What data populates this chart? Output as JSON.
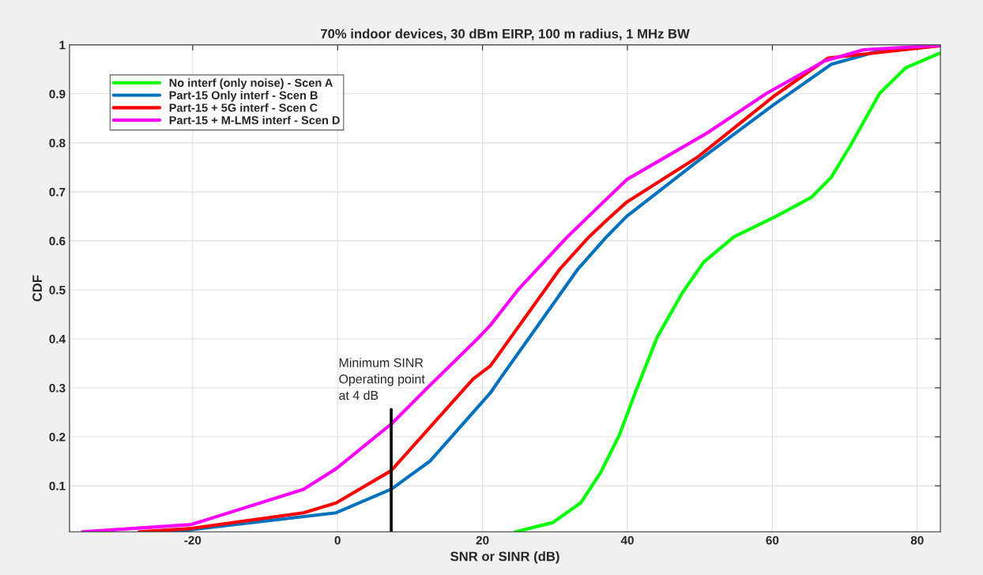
{
  "chart_data": {
    "type": "line",
    "title": "70% indoor devices, 30 dBm EIRP, 100 m radius, 1 MHz BW",
    "xlabel": "SNR or SINR (dB)",
    "ylabel": "CDF",
    "xlim": [
      -37,
      83.2
    ],
    "xticks": [
      -20,
      0,
      20,
      40,
      60,
      80
    ],
    "ylim": [
      0.006,
      1
    ],
    "yticks": [
      0.1,
      0.2,
      0.3,
      0.4,
      0.5,
      0.6,
      0.7,
      0.8,
      0.9,
      1
    ],
    "grid": true,
    "legend": "top left",
    "line_style": "solid",
    "marker": "none",
    "series": [
      {
        "name": "No interf (only noise) - Scen A",
        "color": "#00ff00",
        "x": [
          24.5,
          29.7,
          33.6,
          36.3,
          38.9,
          41.0,
          44.1,
          47.5,
          50.5,
          54.7,
          60.9,
          65.4,
          68.1,
          70.8,
          74.8,
          78.4,
          83.1
        ],
        "values": [
          0.006,
          0.025,
          0.066,
          0.127,
          0.204,
          0.287,
          0.403,
          0.492,
          0.556,
          0.608,
          0.653,
          0.689,
          0.729,
          0.795,
          0.901,
          0.953,
          0.983
        ]
      },
      {
        "name": "Part-15 Only interf - Scen B",
        "color": "#0072bd",
        "x": [
          -22.8,
          -0.2,
          7.4,
          12.8,
          21.1,
          22.4,
          33.2,
          37.1,
          39.9,
          49.3,
          60.1,
          68.1,
          74.8,
          83.1
        ],
        "values": [
          0.006,
          0.045,
          0.093,
          0.151,
          0.29,
          0.318,
          0.543,
          0.608,
          0.65,
          0.758,
          0.877,
          0.96,
          0.988,
          0.998
        ]
      },
      {
        "name": "Part-15 + 5G interf - Scen C",
        "color": "#ff0000",
        "x": [
          -27.4,
          -20.2,
          -4.7,
          -0.2,
          7.4,
          18.7,
          21.1,
          30.7,
          34.7,
          37.2,
          39.9,
          49.8,
          60.1,
          67.7,
          83.1
        ],
        "values": [
          0.006,
          0.013,
          0.045,
          0.065,
          0.131,
          0.318,
          0.345,
          0.543,
          0.608,
          0.643,
          0.679,
          0.772,
          0.894,
          0.973,
          0.998
        ]
      },
      {
        "name": "Part-15 + M-LMS interf - Scen D",
        "color": "#ff00ff",
        "x": [
          -35.2,
          -20.2,
          -4.7,
          -0.2,
          7.4,
          12.4,
          19.3,
          21.1,
          24.9,
          27.6,
          31.7,
          39.9,
          51.1,
          59.2,
          67.2,
          72.6,
          83.1
        ],
        "values": [
          0.006,
          0.021,
          0.093,
          0.135,
          0.226,
          0.3,
          0.4,
          0.428,
          0.5,
          0.543,
          0.608,
          0.725,
          0.821,
          0.901,
          0.967,
          0.99,
          0.999
        ]
      },
      {
        "color": "#000000",
        "x": [
          7.4,
          7.4
        ],
        "values": [
          0.006,
          0.256
        ]
      }
    ],
    "annotations": [
      "Minimum SINR\nOperating point\nat 4 dB"
    ]
  }
}
